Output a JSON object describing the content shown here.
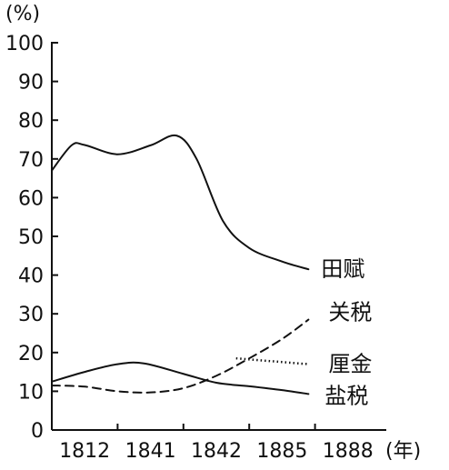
{
  "chart_data": {
    "type": "line",
    "y_unit": "(%)",
    "x_unit": "(年)",
    "categories": [
      "1812",
      "1841",
      "1842",
      "1885",
      "1888"
    ],
    "ylim": [
      0,
      100
    ],
    "yticks": [
      0,
      10,
      20,
      30,
      40,
      50,
      60,
      70,
      80,
      90,
      100
    ],
    "grid": false,
    "colors": {
      "ink": "#111111"
    },
    "series": [
      {
        "name": "田赋",
        "style": "solid",
        "points": [
          [
            0,
            67
          ],
          [
            0.3,
            73.5
          ],
          [
            0.5,
            73.6
          ],
          [
            1,
            71.2
          ],
          [
            1.5,
            73.5
          ],
          [
            1.9,
            76
          ],
          [
            2.2,
            70
          ],
          [
            2.6,
            54
          ],
          [
            3,
            47
          ],
          [
            3.5,
            43.5
          ],
          [
            3.9,
            41.5
          ]
        ]
      },
      {
        "name": "关税",
        "style": "dashed",
        "points": [
          [
            0,
            11.5
          ],
          [
            0.5,
            11.2
          ],
          [
            1,
            10
          ],
          [
            1.5,
            9.7
          ],
          [
            2,
            10.8
          ],
          [
            2.5,
            14
          ],
          [
            3,
            18.5
          ],
          [
            3.5,
            23.5
          ],
          [
            3.9,
            28.5
          ]
        ]
      },
      {
        "name": "厘金",
        "style": "dotted",
        "points": [
          [
            2.8,
            18.5
          ],
          [
            3.9,
            17
          ]
        ]
      },
      {
        "name": "盐税",
        "style": "solid",
        "points": [
          [
            0,
            12.5
          ],
          [
            0.5,
            15
          ],
          [
            1,
            17
          ],
          [
            1.4,
            17.2
          ],
          [
            2,
            14.5
          ],
          [
            2.5,
            12.2
          ],
          [
            3,
            11.3
          ],
          [
            3.5,
            10.3
          ],
          [
            3.9,
            9.3
          ]
        ]
      }
    ]
  }
}
